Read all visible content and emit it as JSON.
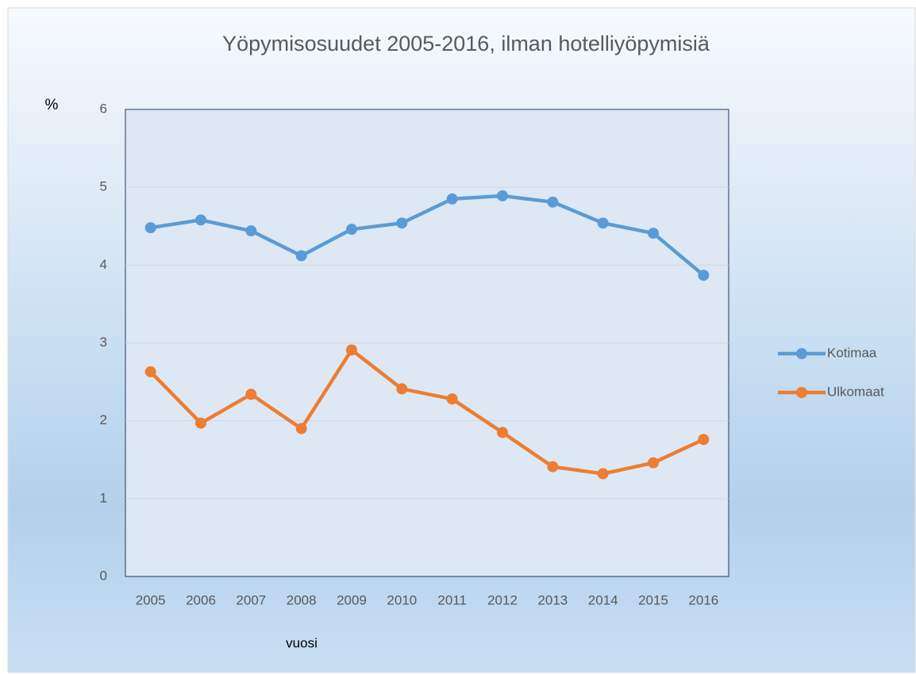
{
  "chart_data": {
    "type": "line",
    "title": "Yöpymisosuudet 2005-2016, ilman hotelliyöpymisiä",
    "ylabel": "%",
    "xlabel": "vuosi",
    "categories": [
      "2005",
      "2006",
      "2007",
      "2008",
      "2009",
      "2010",
      "2011",
      "2012",
      "2013",
      "2014",
      "2015",
      "2016"
    ],
    "series": [
      {
        "name": "Kotimaa",
        "color": "#5b9bd5",
        "values": [
          4.48,
          4.58,
          4.44,
          4.12,
          4.46,
          4.54,
          4.85,
          4.89,
          4.81,
          4.54,
          4.41,
          3.87
        ]
      },
      {
        "name": "Ulkomaat",
        "color": "#ed7d31",
        "values": [
          2.63,
          1.97,
          2.34,
          1.9,
          2.91,
          2.41,
          2.28,
          1.85,
          1.41,
          1.32,
          1.46,
          1.76
        ]
      }
    ],
    "ylim": [
      0,
      6
    ],
    "yticks": [
      0,
      1,
      2,
      3,
      4,
      5,
      6
    ],
    "grid": true,
    "legend": "right"
  }
}
